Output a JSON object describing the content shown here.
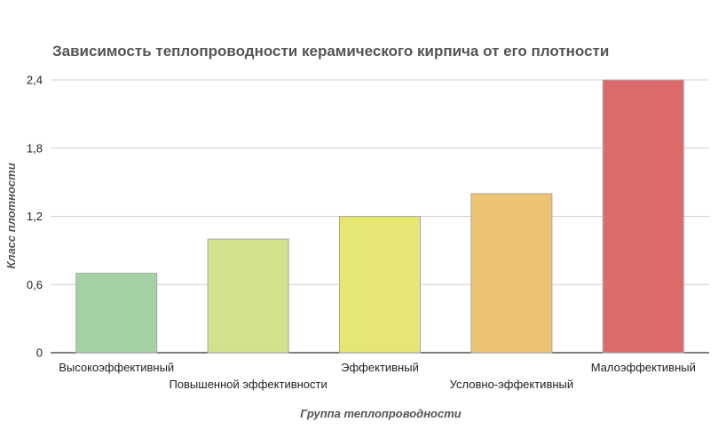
{
  "chart_data": {
    "type": "bar",
    "title": "Зависимость теплопроводности керамического кирпича от его плотности",
    "xlabel": "Группа теплопроводности",
    "ylabel": "Класс плотности",
    "categories": [
      "Высокоэффективный",
      "Повышенной эффективности",
      "Эффективный",
      "Условно-эффективный",
      "Малоэффективный"
    ],
    "values": [
      0.7,
      1.0,
      1.2,
      1.4,
      2.4
    ],
    "colors": [
      "#a3d1a4",
      "#cee38b",
      "#e6e673",
      "#ebc373",
      "#dc6a6a"
    ],
    "yticks": [
      "0",
      "0,6",
      "1,2",
      "1,8",
      "2,4"
    ],
    "ylim": [
      0,
      2.4
    ],
    "grid": true,
    "legend": "none"
  }
}
